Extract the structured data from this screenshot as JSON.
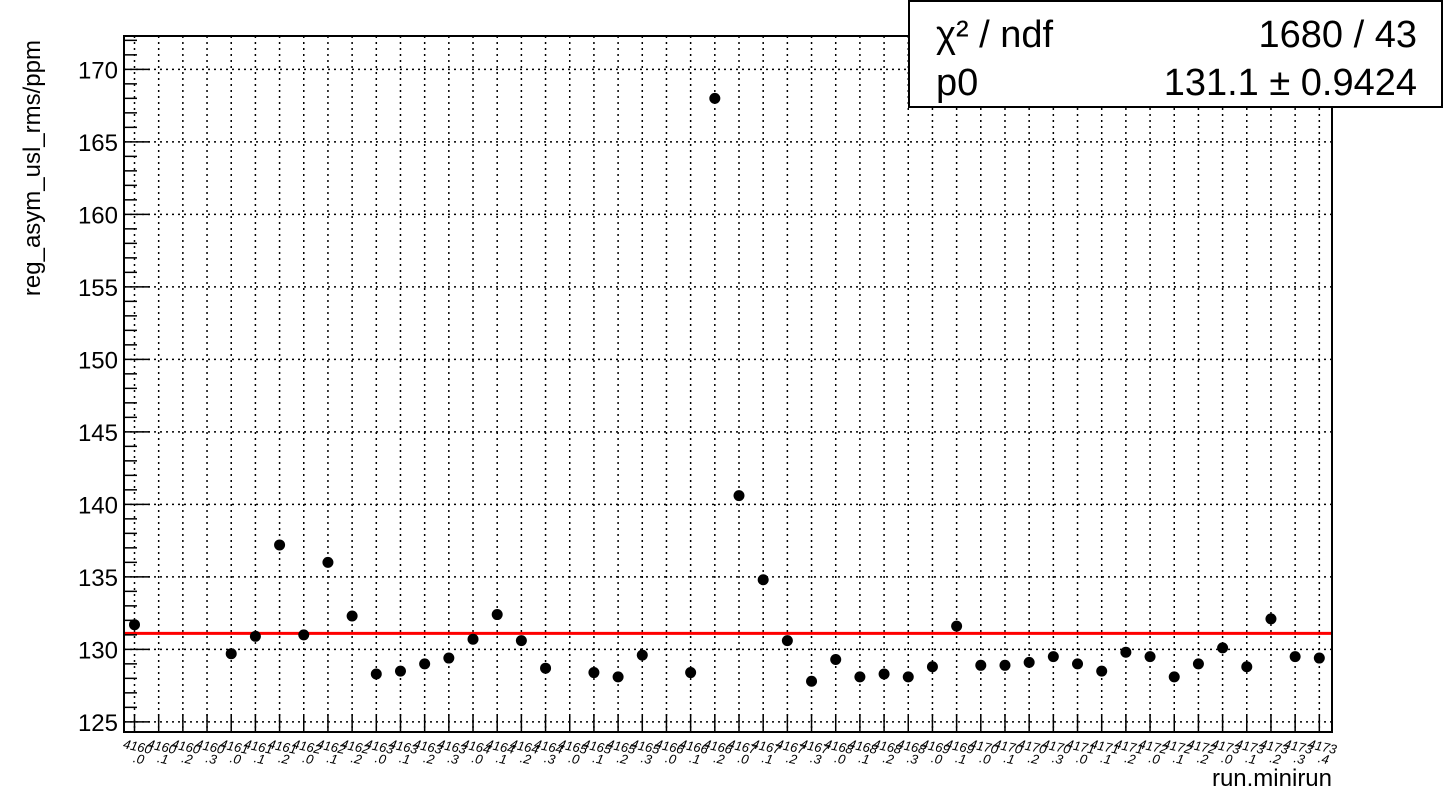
{
  "chart_data": {
    "type": "scatter",
    "title": "",
    "xlabel": "run.minirun",
    "ylabel": "reg_asym_usl_rms/ppm",
    "ylim": [
      124.3,
      172.3
    ],
    "yticks": [
      125,
      130,
      135,
      140,
      145,
      150,
      155,
      160,
      165,
      170
    ],
    "grid": true,
    "x_tick_labels": [
      "4160.0",
      "4160.1",
      "4160.2",
      "4160.3",
      "4161.0",
      "4161.1",
      "4161.2",
      "4162.0",
      "4162.1",
      "4162.2",
      "4163.0",
      "4163.1",
      "4163.2",
      "4163.3",
      "4164.0",
      "4164.1",
      "4164.2",
      "4164.3",
      "4165.0",
      "4165.1",
      "4165.2",
      "4165.3",
      "4166.0",
      "4166.1",
      "4166.2",
      "4167.0",
      "4167.1",
      "4167.2",
      "4167.3",
      "4168.0",
      "4168.1",
      "4168.2",
      "4168.3",
      "4169.0",
      "4169.1",
      "4170.0",
      "4170.1",
      "4170.2",
      "4170.3",
      "4171.0",
      "4171.1",
      "4171.2",
      "4172.0",
      "4172.1",
      "4172.2",
      "4173.0",
      "4173.1",
      "4173.2",
      "4173.3",
      "4173.4"
    ],
    "series": [
      {
        "x_index": [
          0,
          4,
          5,
          6,
          7,
          8,
          9,
          10,
          11,
          12,
          13,
          14,
          15,
          16,
          17,
          19,
          20,
          21,
          23,
          24,
          25,
          26,
          27,
          28,
          29,
          30,
          31,
          32,
          33,
          34,
          35,
          36,
          37,
          38,
          39,
          40,
          41,
          42,
          43,
          44,
          45,
          46,
          47,
          48,
          49
        ],
        "values": [
          131.7,
          129.7,
          130.9,
          137.2,
          131.0,
          136.0,
          132.3,
          128.3,
          128.5,
          129.0,
          129.4,
          130.7,
          132.4,
          130.6,
          128.7,
          128.4,
          128.1,
          129.6,
          128.4,
          168.0,
          140.6,
          134.8,
          130.6,
          127.8,
          129.3,
          128.1,
          128.3,
          128.1,
          128.8,
          131.6,
          128.9,
          128.9,
          129.1,
          129.5,
          129.0,
          128.5,
          129.8,
          129.5,
          128.1,
          129.0,
          130.1,
          128.8,
          132.1,
          129.5,
          129.4
        ]
      }
    ],
    "fit": {
      "value": 131.1,
      "color": "#ff0000"
    }
  },
  "stats": {
    "chi2_label": "χ² / ndf",
    "chi2_value": "1680 / 43",
    "p0_label": "p0",
    "p0_value": "131.1 ± 0.9424"
  }
}
